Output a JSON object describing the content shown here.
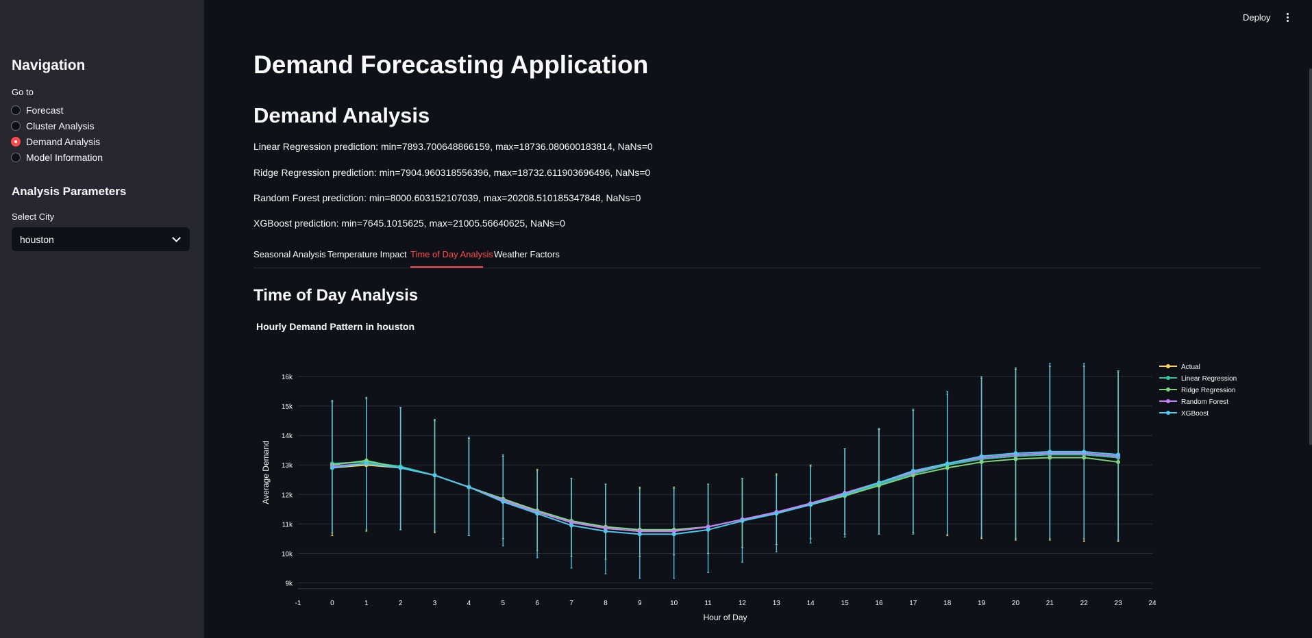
{
  "sidebar": {
    "title": "Navigation",
    "goto_label": "Go to",
    "options": [
      "Forecast",
      "Cluster Analysis",
      "Demand Analysis",
      "Model Information"
    ],
    "selected_option": "Demand Analysis",
    "params_title": "Analysis Parameters",
    "city_label": "Select City",
    "city_value": "houston"
  },
  "toolbar": {
    "deploy_label": "Deploy"
  },
  "main": {
    "title": "Demand Forecasting Application",
    "section_title": "Demand Analysis",
    "predictions": [
      "Linear Regression prediction: min=7893.700648866159, max=18736.080600183814, NaNs=0",
      "Ridge Regression prediction: min=7904.960318556396, max=18732.611903696496, NaNs=0",
      "Random Forest prediction: min=8000.603152107039, max=20208.510185347848, NaNs=0",
      "XGBoost prediction: min=7645.1015625, max=21005.56640625, NaNs=0"
    ],
    "tabs": [
      "Seasonal Analysis",
      "Temperature Impact",
      "Time of Day Analysis",
      "Weather Factors"
    ],
    "active_tab": "Time of Day Analysis",
    "subsection_title": "Time of Day Analysis"
  },
  "chart_data": {
    "type": "line",
    "title": "Hourly Demand Pattern in houston",
    "xlabel": "Hour of Day",
    "ylabel": "Average Demand",
    "xlim": [
      -1,
      24
    ],
    "ylim": [
      8800,
      16700
    ],
    "x_ticks": [
      -1,
      0,
      1,
      2,
      3,
      4,
      5,
      6,
      7,
      8,
      9,
      10,
      11,
      12,
      13,
      14,
      15,
      16,
      17,
      18,
      19,
      20,
      21,
      22,
      23,
      24
    ],
    "y_ticks": [
      9000,
      10000,
      11000,
      12000,
      13000,
      14000,
      15000,
      16000
    ],
    "y_tick_labels": [
      "9k",
      "10k",
      "11k",
      "12k",
      "13k",
      "14k",
      "15k",
      "16k"
    ],
    "grid": true,
    "legend_position": "top-right",
    "x": [
      0,
      1,
      2,
      3,
      4,
      5,
      6,
      7,
      8,
      9,
      10,
      11,
      12,
      13,
      14,
      15,
      16,
      17,
      18,
      19,
      20,
      21,
      22,
      23
    ],
    "series": [
      {
        "name": "Actual",
        "color": "#ffd15c",
        "values": [
          12900,
          13000,
          12900,
          12650,
          12250,
          11800,
          11400,
          11050,
          10850,
          10750,
          10750,
          10900,
          11150,
          11400,
          11700,
          12050,
          12400,
          12750,
          13000,
          13200,
          13300,
          13350,
          13350,
          13250
        ],
        "error_low": [
          10600,
          10750,
          10800,
          10700,
          10600,
          10500,
          10100,
          9900,
          9800,
          9900,
          9950,
          10000,
          10200,
          10300,
          10500,
          10650,
          10650,
          10700,
          10600,
          10500,
          10450,
          10450,
          10400,
          10400
        ],
        "error_high": [
          15150,
          15250,
          14950,
          14500,
          13900,
          13300,
          12850,
          12550,
          12350,
          12250,
          12250,
          12350,
          12550,
          12700,
          13000,
          13550,
          14200,
          14850,
          15400,
          15950,
          16250,
          16350,
          16350,
          16150
        ]
      },
      {
        "name": "Linear Regression",
        "color": "#2ec4a6",
        "values": [
          13050,
          13100,
          12950,
          12650,
          12250,
          11850,
          11450,
          11100,
          10900,
          10800,
          10800,
          10900,
          11150,
          11400,
          11700,
          12000,
          12350,
          12700,
          13000,
          13200,
          13300,
          13350,
          13350,
          13250
        ]
      },
      {
        "name": "Ridge Regression",
        "color": "#7fd47f",
        "values": [
          13000,
          13150,
          12900,
          12650,
          12250,
          11850,
          11450,
          11100,
          10900,
          10800,
          10800,
          10900,
          11150,
          11400,
          11650,
          11950,
          12300,
          12650,
          12900,
          13100,
          13200,
          13250,
          13250,
          13100
        ]
      },
      {
        "name": "Random Forest",
        "color": "#c77dff",
        "values": [
          12950,
          13050,
          12900,
          12650,
          12250,
          11800,
          11400,
          11050,
          10850,
          10750,
          10750,
          10900,
          11150,
          11400,
          11700,
          12050,
          12400,
          12750,
          13050,
          13250,
          13350,
          13400,
          13400,
          13300
        ]
      },
      {
        "name": "XGBoost",
        "color": "#4cc9e8",
        "values": [
          12900,
          13050,
          12900,
          12650,
          12250,
          11750,
          11350,
          10950,
          10750,
          10650,
          10650,
          10800,
          11100,
          11350,
          11650,
          12000,
          12400,
          12800,
          13050,
          13300,
          13400,
          13450,
          13450,
          13350
        ],
        "error_low": [
          10700,
          10800,
          10800,
          10750,
          10600,
          10250,
          9850,
          9500,
          9300,
          9150,
          9150,
          9350,
          9700,
          10050,
          10350,
          10550,
          10650,
          10650,
          10650,
          10550,
          10500,
          10500,
          10500,
          10450
        ],
        "error_high": [
          15200,
          15300,
          14950,
          14550,
          13950,
          13350,
          12800,
          12550,
          12350,
          12200,
          12200,
          12350,
          12550,
          12650,
          12950,
          13550,
          14250,
          14900,
          15500,
          16000,
          16300,
          16450,
          16450,
          16200
        ]
      }
    ]
  }
}
